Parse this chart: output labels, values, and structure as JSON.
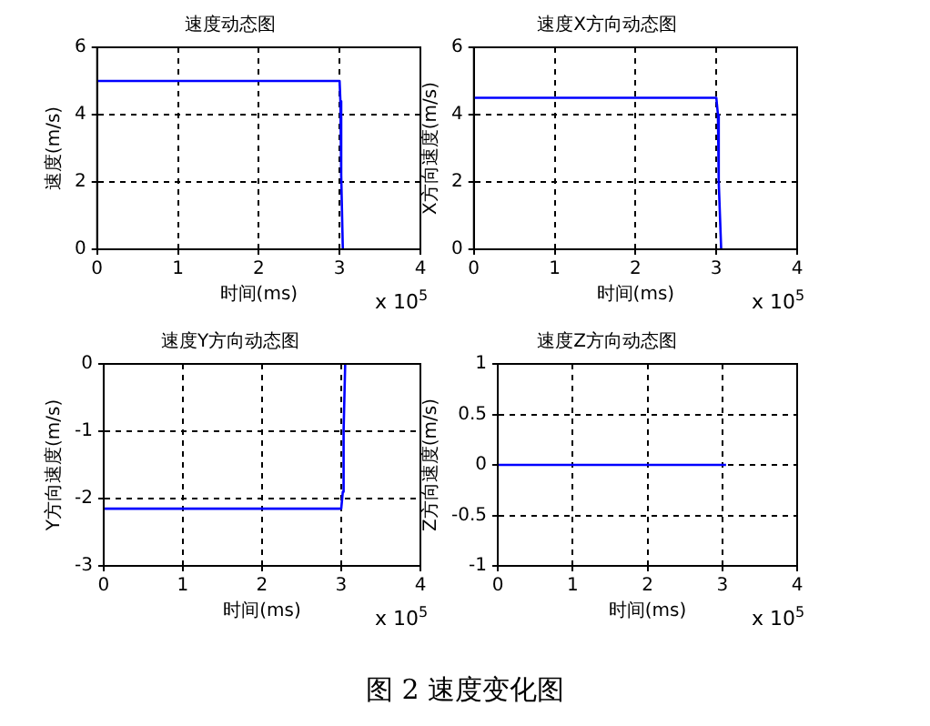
{
  "chart_data": [
    {
      "type": "line",
      "title": "速度动态图",
      "xlabel": "时间(ms)",
      "ylabel": "速度(m/s)",
      "x": [
        0,
        3,
        3.01,
        3.02,
        3.04
      ],
      "series": [
        {
          "color": "#0000ff",
          "values": [
            5,
            5,
            4.4,
            2.2,
            0
          ]
        }
      ],
      "xlim": [
        0,
        4
      ],
      "xticks": [
        0,
        1,
        2,
        3,
        4
      ],
      "ylim": [
        0,
        6
      ],
      "yticks": [
        0,
        2,
        4,
        6
      ],
      "grid": true,
      "marker": "none",
      "annotations": [
        "x 10$^{5}$"
      ]
    },
    {
      "type": "line",
      "title": "速度X方向动态图",
      "xlabel": "时间(ms)",
      "ylabel": "X方向速度(m/s)",
      "x": [
        0,
        3,
        3.02,
        3.03,
        3.06
      ],
      "series": [
        {
          "color": "#0000ff",
          "values": [
            4.5,
            4.5,
            4,
            2,
            0
          ]
        }
      ],
      "xlim": [
        0,
        4
      ],
      "xticks": [
        0,
        1,
        2,
        3,
        4
      ],
      "ylim": [
        0,
        6
      ],
      "yticks": [
        0,
        2,
        4,
        6
      ],
      "grid": true,
      "marker": "none",
      "annotations": [
        "x 10$^{5}$"
      ]
    },
    {
      "type": "line",
      "title": "速度Y方向动态图",
      "xlabel": "时间(ms)",
      "ylabel": "Y方向速度(m/s)",
      "x": [
        0,
        3,
        3.02,
        3.03,
        3.05
      ],
      "series": [
        {
          "color": "#0000ff",
          "values": [
            -2.15,
            -2.15,
            -1.9,
            -1,
            0
          ]
        }
      ],
      "xlim": [
        0,
        4
      ],
      "xticks": [
        0,
        1,
        2,
        3,
        4
      ],
      "ylim": [
        -3,
        0
      ],
      "yticks": [
        -3,
        -2,
        -1,
        0
      ],
      "grid": true,
      "marker": "none",
      "annotations": [
        "x 10$^{5}$"
      ]
    },
    {
      "type": "line",
      "title": "速度Z方向动态图",
      "xlabel": "时间(ms)",
      "ylabel": "Z方向速度(m/s)",
      "x": [
        0,
        3.05
      ],
      "series": [
        {
          "color": "#0000ff",
          "values": [
            0,
            0
          ]
        }
      ],
      "xlim": [
        0,
        4
      ],
      "xticks": [
        0,
        1,
        2,
        3,
        4
      ],
      "ylim": [
        -1,
        1
      ],
      "yticks": [
        -1,
        -0.5,
        0,
        0.5,
        1
      ],
      "grid": true,
      "marker": "none",
      "annotations": [
        "x 10$^{5}$",
        "图 2  速度变化图"
      ]
    }
  ]
}
